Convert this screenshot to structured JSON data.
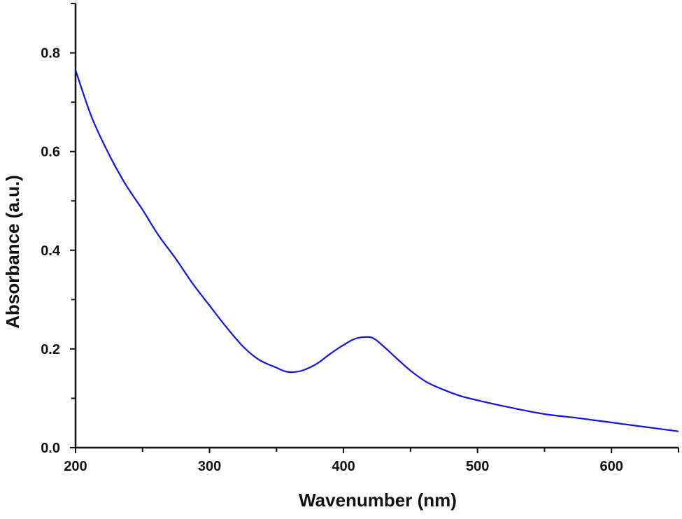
{
  "chart_data": {
    "type": "line",
    "title": "",
    "xlabel": "Wavenumber (nm)",
    "ylabel": "Absorbance (a.u.)",
    "xlim": [
      200,
      650
    ],
    "ylim": [
      0,
      0.9
    ],
    "xticks": [
      200,
      300,
      400,
      500,
      600
    ],
    "xtick_labels": [
      "200",
      "300",
      "400",
      "500",
      "600"
    ],
    "yticks": [
      0.0,
      0.2,
      0.4,
      0.6,
      0.8
    ],
    "ytick_labels": [
      "0.0",
      "0.2",
      "0.4",
      "0.6",
      "0.8"
    ],
    "grid": false,
    "series": [
      {
        "name": "absorbance",
        "color": "#1010ee",
        "x": [
          200,
          212,
          225,
          237,
          250,
          262,
          275,
          287,
          300,
          312,
          325,
          337,
          350,
          356,
          362,
          370,
          380,
          390,
          400,
          408,
          415,
          422,
          430,
          440,
          450,
          462,
          475,
          487,
          500,
          525,
          550,
          575,
          600,
          625,
          650
        ],
        "y": [
          0.765,
          0.67,
          0.594,
          0.535,
          0.482,
          0.43,
          0.382,
          0.334,
          0.288,
          0.246,
          0.205,
          0.178,
          0.162,
          0.155,
          0.153,
          0.157,
          0.17,
          0.19,
          0.208,
          0.22,
          0.224,
          0.222,
          0.205,
          0.18,
          0.156,
          0.133,
          0.117,
          0.105,
          0.096,
          0.081,
          0.068,
          0.06,
          0.051,
          0.042,
          0.033
        ]
      }
    ]
  }
}
